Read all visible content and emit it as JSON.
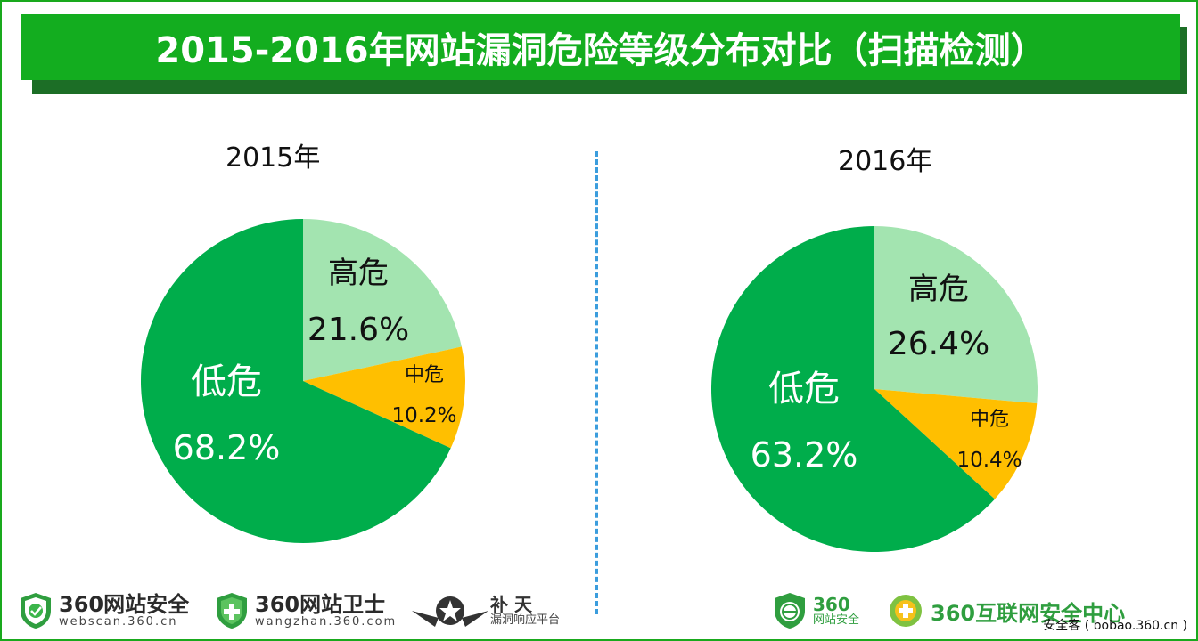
{
  "title": "2015-2016年网站漏洞危险等级分布对比（扫描检测）",
  "chart_data": [
    {
      "type": "pie",
      "title": "2015年",
      "slices": [
        {
          "label": "高危",
          "value": 21.6,
          "value_label": "21.6%",
          "color": "#a3e4b0"
        },
        {
          "label": "中危",
          "value": 10.2,
          "value_label": "10.2%",
          "color": "#ffbf00"
        },
        {
          "label": "低危",
          "value": 68.2,
          "value_label": "68.2%",
          "color": "#00ad4b"
        }
      ]
    },
    {
      "type": "pie",
      "title": "2016年",
      "slices": [
        {
          "label": "高危",
          "value": 26.4,
          "value_label": "26.4%",
          "color": "#a3e4b0"
        },
        {
          "label": "中危",
          "value": 10.4,
          "value_label": "10.4%",
          "color": "#ffbf00"
        },
        {
          "label": "低危",
          "value": 63.2,
          "value_label": "63.2%",
          "color": "#00ad4b"
        }
      ]
    }
  ],
  "logos_left": [
    {
      "name": "360网站安全",
      "sub": "webscan.360.cn",
      "icon": "shield-check-icon"
    },
    {
      "name": "360网站卫士",
      "sub": "wangzhan.360.com",
      "icon": "shield-plus-icon"
    },
    {
      "name": "补 天",
      "sub": "漏洞响应平台",
      "icon": "star-wing-icon"
    }
  ],
  "logos_right": [
    {
      "name": "360",
      "sub": "网站安全",
      "icon": "shield-globe-icon"
    },
    {
      "name": "360互联网安全中心",
      "icon": "circle-plus-icon"
    }
  ],
  "watermark": "安全客 ( bobao.360.cn )",
  "colors": {
    "banner": "#13ad1f",
    "high": "#a3e4b0",
    "medium": "#ffbf00",
    "low": "#00ad4b"
  }
}
